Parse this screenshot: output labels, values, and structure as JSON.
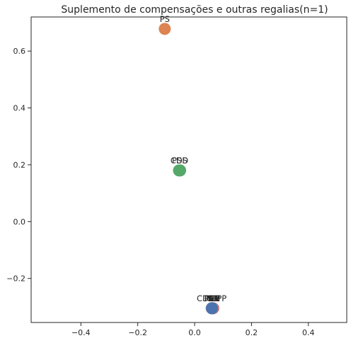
{
  "chart_data": {
    "type": "scatter",
    "title": "Suplemento de compensações e outras regalias(n=1)",
    "xlabel": "",
    "ylabel": "",
    "xlim": [
      -0.575,
      0.535
    ],
    "ylim": [
      -0.355,
      0.72
    ],
    "xticks": [
      -0.4,
      -0.2,
      0.0,
      0.2,
      0.4
    ],
    "xtick_labels": [
      "−0.4",
      "−0.2",
      "0.0",
      "0.2",
      "0.4"
    ],
    "yticks": [
      -0.2,
      0.0,
      0.2,
      0.4,
      0.6
    ],
    "ytick_labels": [
      "−0.2",
      "0.0",
      "0.2",
      "0.4",
      "0.6"
    ],
    "grid": false,
    "legend": "none",
    "points": [
      {
        "label": "BE",
        "x": 0.065,
        "y": -0.305,
        "color": "#c44e52"
      },
      {
        "label": "PAN",
        "x": 0.062,
        "y": -0.305,
        "color": "#8172b3"
      },
      {
        "label": "CDS-PP",
        "x": 0.06,
        "y": -0.305,
        "color": "#937860"
      },
      {
        "label": "PCP",
        "x": 0.062,
        "y": -0.305,
        "color": "#da8bc3"
      },
      {
        "label": "PEV",
        "x": 0.061,
        "y": -0.305,
        "color": "#8c8c8c"
      },
      {
        "label": "CH",
        "x": 0.062,
        "y": -0.305,
        "color": "#ccb974"
      },
      {
        "label": "IL",
        "x": 0.061,
        "y": -0.305,
        "color": "#64b5cd"
      },
      {
        "label": "L",
        "x": 0.061,
        "y": -0.305,
        "color": "#4c72b0"
      },
      {
        "label": "PSD",
        "x": -0.051,
        "y": 0.18,
        "color": "#55a868"
      },
      {
        "label": "CDS",
        "x": -0.055,
        "y": 0.18,
        "color": "#55a868"
      },
      {
        "label": "PS",
        "x": -0.105,
        "y": 0.678,
        "color": "#dd8452"
      }
    ]
  }
}
